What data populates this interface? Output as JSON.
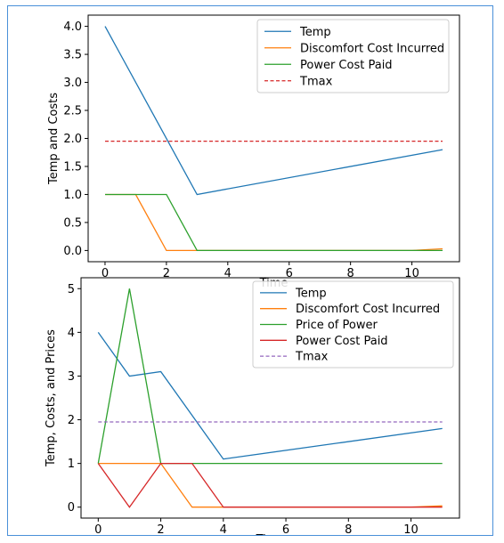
{
  "chart_data": [
    {
      "type": "line",
      "title": "",
      "xlabel": "Time",
      "ylabel": "Temp and Costs",
      "xlim": [
        -0.55,
        11.55
      ],
      "ylim": [
        -0.2,
        4.2
      ],
      "x_ticks": [
        0,
        2,
        4,
        6,
        8,
        10
      ],
      "x_tick_labels": [
        "0",
        "2",
        "4",
        "6",
        "8",
        "10"
      ],
      "y_ticks": [
        0.0,
        0.5,
        1.0,
        1.5,
        2.0,
        2.5,
        3.0,
        3.5,
        4.0
      ],
      "y_tick_labels": [
        "0.0",
        "0.5",
        "1.0",
        "1.5",
        "2.0",
        "2.5",
        "3.0",
        "3.5",
        "4.0"
      ],
      "grid": false,
      "legend_position": "top-right",
      "series": [
        {
          "name": "Temp",
          "color": "#1f77b4",
          "dashed": false,
          "x": [
            0,
            3,
            11
          ],
          "y": [
            4.0,
            1.0,
            1.8
          ]
        },
        {
          "name": "Discomfort Cost Incurred",
          "color": "#ff7f0e",
          "dashed": false,
          "x": [
            0,
            1,
            2,
            10,
            11
          ],
          "y": [
            1.0,
            1.0,
            0.0,
            0.0,
            0.03
          ]
        },
        {
          "name": "Power Cost Paid",
          "color": "#2ca02c",
          "dashed": false,
          "x": [
            0,
            2,
            3,
            10,
            11
          ],
          "y": [
            1.0,
            1.0,
            0.0,
            0.0,
            0.0
          ]
        },
        {
          "name": "Tmax",
          "color": "#d62728",
          "dashed": true,
          "x": [
            0,
            11
          ],
          "y": [
            1.95,
            1.95
          ]
        }
      ]
    },
    {
      "type": "line",
      "title": "",
      "xlabel": "Time",
      "ylabel": "Temp, Costs, and Prices",
      "xlim": [
        -0.55,
        11.55
      ],
      "ylim": [
        -0.25,
        5.25
      ],
      "x_ticks": [
        0,
        2,
        4,
        6,
        8,
        10
      ],
      "x_tick_labels": [
        "0",
        "2",
        "4",
        "6",
        "8",
        "10"
      ],
      "y_ticks": [
        0,
        1,
        2,
        3,
        4,
        5
      ],
      "y_tick_labels": [
        "0",
        "1",
        "2",
        "3",
        "4",
        "5"
      ],
      "grid": false,
      "legend_position": "top-right",
      "series": [
        {
          "name": "Temp",
          "color": "#1f77b4",
          "dashed": false,
          "x": [
            0,
            1,
            2,
            4,
            11
          ],
          "y": [
            4.0,
            3.0,
            3.1,
            1.1,
            1.8
          ]
        },
        {
          "name": "Discomfort Cost Incurred",
          "color": "#ff7f0e",
          "dashed": false,
          "x": [
            0,
            2,
            3,
            10,
            11
          ],
          "y": [
            1.0,
            1.0,
            0.0,
            0.0,
            0.03
          ]
        },
        {
          "name": "Price of Power",
          "color": "#2ca02c",
          "dashed": false,
          "x": [
            0,
            1,
            2,
            11
          ],
          "y": [
            1.0,
            5.0,
            1.0,
            1.0
          ]
        },
        {
          "name": "Power Cost Paid",
          "color": "#d62728",
          "dashed": false,
          "x": [
            0,
            1,
            2,
            3,
            4,
            10,
            11
          ],
          "y": [
            1.0,
            0.0,
            1.0,
            1.0,
            0.0,
            0.0,
            0.0
          ]
        },
        {
          "name": "Tmax",
          "color": "#9467bd",
          "dashed": true,
          "x": [
            0,
            11
          ],
          "y": [
            1.95,
            1.95
          ]
        }
      ]
    }
  ]
}
